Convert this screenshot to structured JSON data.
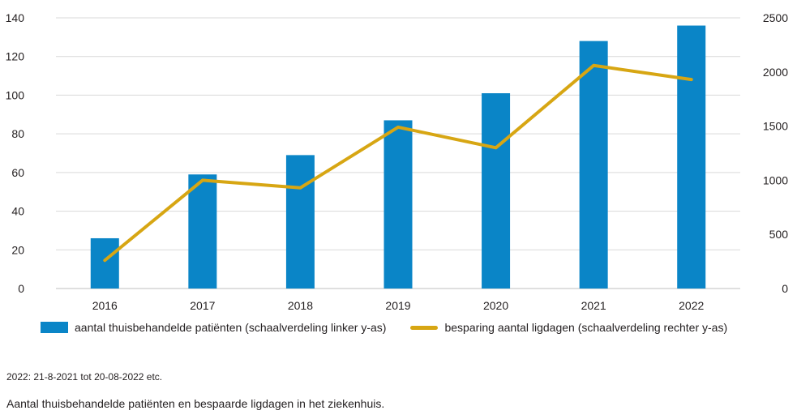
{
  "chart_data": {
    "type": "bar+line",
    "categories": [
      "2016",
      "2017",
      "2018",
      "2019",
      "2020",
      "2021",
      "2022"
    ],
    "series": [
      {
        "name": "aantal thuisbehandelde patiënten (schaalverdeling linker y-as)",
        "type": "bar",
        "axis": "left",
        "color": "#0a85c7",
        "values": [
          26,
          59,
          69,
          87,
          101,
          128,
          136
        ]
      },
      {
        "name": "besparing aantal ligdagen (schaalverdeling rechter y-as)",
        "type": "line",
        "axis": "right",
        "color": "#d7a613",
        "values": [
          260,
          1000,
          930,
          1490,
          1300,
          2060,
          1930
        ]
      }
    ],
    "y_left": {
      "lim": [
        0,
        140
      ],
      "ticks": [
        "0",
        "20",
        "40",
        "60",
        "80",
        "100",
        "120",
        "140"
      ]
    },
    "y_right": {
      "lim": [
        0,
        2500
      ],
      "ticks": [
        "0",
        "500",
        "1000",
        "1500",
        "2000",
        "2500"
      ]
    },
    "grid": true,
    "legend_position": "bottom"
  },
  "note": "2022: 21-8-2021 tot 20-08-2022 etc.",
  "caption": "Aantal thuisbehandelde patiënten en bespaarde ligdagen in het ziekenhuis."
}
